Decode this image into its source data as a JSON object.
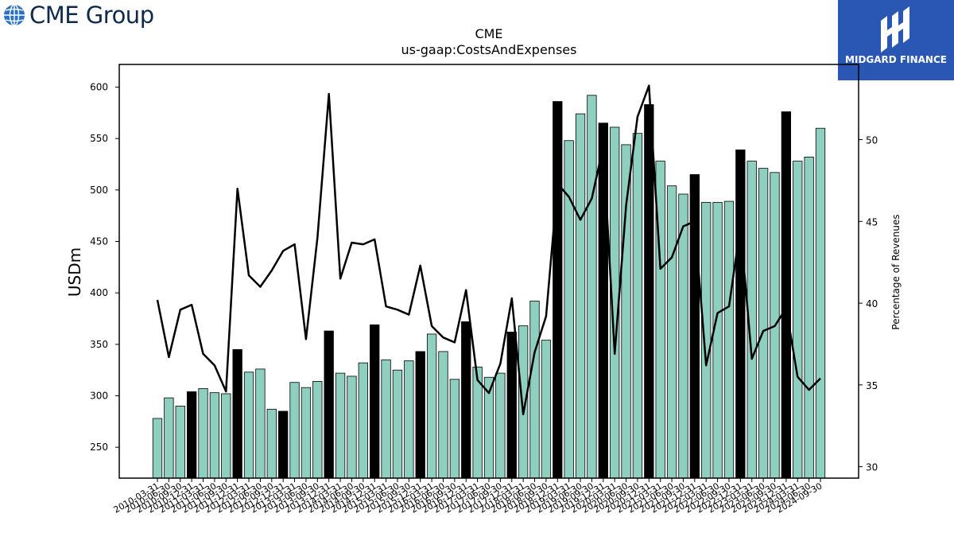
{
  "header": {
    "brand": "CME Group",
    "brand_logo": "cme-globe-icon",
    "partner": "MIDGARD FINANCE",
    "partner_logo": "midgard-mark-icon",
    "partner_bg": "#2a57b3"
  },
  "chart_data": {
    "type": "bar",
    "title": "CME",
    "subtitle": "us-gaap:CostsAndExpenses",
    "ylabel": "USDm",
    "y2label": "Percentage of Revenues",
    "ylim": [
      220,
      622
    ],
    "y2lim": [
      29.3,
      54.6
    ],
    "yticks": [
      250,
      300,
      350,
      400,
      450,
      500,
      550,
      600
    ],
    "y2ticks": [
      30,
      35,
      40,
      45,
      50
    ],
    "bar_color": "#8ecfc0",
    "highlight_color": "#000000",
    "line_color": "#000000",
    "grid": false,
    "legend": "none",
    "categories": [
      "2010-03-31",
      "2010-06-30",
      "2010-09-30",
      "2010-12-31",
      "2011-03-31",
      "2011-06-30",
      "2011-09-30",
      "2011-12-31",
      "2012-03-31",
      "2012-06-30",
      "2012-09-30",
      "2012-12-31",
      "2013-03-31",
      "2013-06-30",
      "2013-09-30",
      "2013-12-31",
      "2014-03-31",
      "2014-06-30",
      "2014-09-30",
      "2014-12-31",
      "2015-03-31",
      "2015-06-30",
      "2015-09-30",
      "2015-12-31",
      "2016-03-31",
      "2016-06-30",
      "2016-09-30",
      "2016-12-31",
      "2017-03-31",
      "2017-06-30",
      "2017-09-30",
      "2017-12-31",
      "2018-03-31",
      "2018-06-30",
      "2018-09-30",
      "2018-12-31",
      "2019-03-31",
      "2019-06-30",
      "2019-09-30",
      "2019-12-31",
      "2020-03-31",
      "2020-06-30",
      "2020-09-30",
      "2020-12-31",
      "2021-03-31",
      "2021-06-30",
      "2021-09-30",
      "2021-12-31",
      "2022-03-31",
      "2022-06-30",
      "2022-09-30",
      "2022-12-31",
      "2023-03-31",
      "2023-06-30",
      "2023-09-30",
      "2023-12-31",
      "2024-03-31",
      "2024-06-30",
      "2024-09-30"
    ],
    "tick_labels": [
      "2010-03-31",
      "2010-06-30",
      "2010-09-30",
      "2010-12-31",
      "2011-03-31",
      "2011-06-30",
      "2011-09-30",
      "2011-12-31",
      "2012-03-31",
      "2012-06-30",
      "2012-09-30",
      "2012-12-31",
      "2013-03-31",
      "2013-06-30",
      "2013-09-30",
      "2013-12-31",
      "2014-03-31",
      "2014-06-30",
      "2014-09-30",
      "2014-12-31",
      "2015-03-31",
      "2015-06-30",
      "2015-09-30",
      "2015-12-31",
      "2016-03-31",
      "2016-06-30",
      "2016-09-30",
      "2016-12-31",
      "2017-03-31",
      "2017-06-30",
      "2017-09-30",
      "2017-12-31",
      "2018-03-31",
      "2018-06-30",
      "2018-09-30",
      "2018-12-31",
      "2019-03-31",
      "2019-06-30",
      "2019-09-30",
      "2019-12-31",
      "2020-03-31",
      "2020-06-30",
      "2020-09-30",
      "2020-12-31",
      "2021-03-31",
      "2021-06-30",
      "2021-09-30",
      "2021-12-31",
      "2022-03-31",
      "2022-06-30",
      "2022-09-30",
      "2022-12-31",
      "2023-03-31",
      "2023-06-30",
      "2023-09-30",
      "2023-12-31",
      "2024-03-31",
      "2024-06-30",
      "2024-09-30"
    ],
    "series": [
      {
        "values": [
          278,
          298,
          290,
          304,
          307,
          303,
          302,
          345,
          323,
          326,
          287,
          285,
          313,
          308,
          314,
          363,
          322,
          319,
          332,
          369,
          335,
          325,
          334,
          343,
          360,
          343,
          316,
          372,
          328,
          318,
          322,
          362,
          368,
          392,
          354,
          586,
          548,
          574,
          592,
          565,
          561,
          544,
          555,
          583,
          528,
          504,
          496,
          515,
          488,
          488,
          489,
          539,
          528,
          521,
          517,
          576,
          528,
          532,
          560
        ]
      },
      {
        "values": [
          40.2,
          36.7,
          39.6,
          39.9,
          36.9,
          36.2,
          34.6,
          47.0,
          41.7,
          41.0,
          42.0,
          43.2,
          43.6,
          37.8,
          44.0,
          52.8,
          41.5,
          43.7,
          43.6,
          43.9,
          39.8,
          39.6,
          39.3,
          42.3,
          38.6,
          37.9,
          37.6,
          40.8,
          35.3,
          34.5,
          36.3,
          40.3,
          33.2,
          37.0,
          39.2,
          47.3,
          46.5,
          45.1,
          46.4,
          49.6,
          36.9,
          46.0,
          51.4,
          53.3,
          42.1,
          42.8,
          44.7,
          45.0,
          36.2,
          39.4,
          39.8,
          44.7,
          36.6,
          38.3,
          38.6,
          39.7,
          35.5,
          34.7,
          35.4
        ]
      }
    ]
  }
}
